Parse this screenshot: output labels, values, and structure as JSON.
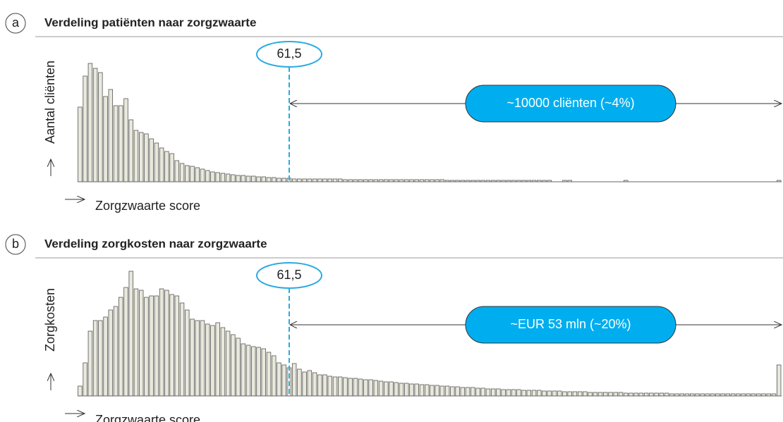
{
  "chart_data": [
    {
      "type": "bar",
      "label": "a",
      "title": "Verdeling patiënten naar zorgzwaarte",
      "y_label": "Aantal cliënten",
      "x_label": "Zorgzwaarte score",
      "marker": "61,5",
      "annotation": "~10000 cliënten (~4%)",
      "color": "#e8e8dc",
      "values": [
        106,
        150,
        168,
        161,
        155,
        121,
        131,
        108,
        108,
        118,
        88,
        73,
        70,
        68,
        61,
        55,
        48,
        43,
        40,
        30,
        26,
        23,
        22,
        20,
        18,
        16,
        14,
        13,
        12,
        11,
        10,
        9,
        9,
        8,
        8,
        7,
        7,
        6,
        6,
        5,
        5,
        5,
        4,
        4,
        4,
        4,
        4,
        4,
        4,
        4,
        4,
        4,
        3,
        3,
        3,
        3,
        3,
        3,
        3,
        3,
        3,
        3,
        3,
        3,
        3,
        3,
        3,
        3,
        3,
        3,
        3,
        3,
        2,
        2,
        2,
        2,
        2,
        2,
        2,
        2,
        2,
        2,
        2,
        2,
        2,
        2,
        2,
        2,
        2,
        2,
        2,
        2,
        2,
        0,
        0,
        2,
        2,
        0,
        0,
        0,
        0,
        0,
        0,
        0,
        0,
        0,
        0,
        2,
        0,
        0,
        0,
        0,
        0,
        0,
        0,
        0,
        0,
        0,
        0,
        0,
        0,
        0,
        0,
        0,
        0,
        0,
        0,
        0,
        0,
        0,
        0,
        0,
        0,
        0,
        0,
        0,
        0,
        2
      ]
    },
    {
      "type": "bar",
      "label": "b",
      "title": "Verdeling zorgkosten naar zorgzwaarte",
      "y_label": "Zorgkosten",
      "x_label": "Zorgzwaarte score",
      "marker": "61,5",
      "annotation": "~EUR 53 mln (~20%)",
      "color": "#e8e8dc",
      "values": [
        14,
        47,
        92,
        107,
        107,
        112,
        122,
        127,
        140,
        154,
        177,
        152,
        150,
        140,
        142,
        142,
        152,
        150,
        144,
        142,
        132,
        122,
        109,
        107,
        107,
        102,
        100,
        104,
        97,
        92,
        87,
        82,
        74,
        72,
        70,
        69,
        67,
        62,
        57,
        47,
        44,
        40,
        46,
        38,
        34,
        36,
        33,
        30,
        30,
        28,
        27,
        27,
        26,
        25,
        25,
        24,
        23,
        23,
        22,
        21,
        20,
        20,
        19,
        18,
        18,
        17,
        17,
        16,
        16,
        15,
        15,
        14,
        14,
        13,
        13,
        12,
        12,
        12,
        11,
        11,
        10,
        10,
        10,
        9,
        9,
        9,
        9,
        8,
        8,
        8,
        8,
        7,
        7,
        7,
        7,
        6,
        6,
        6,
        6,
        6,
        5,
        5,
        5,
        5,
        5,
        5,
        5,
        4,
        4,
        4,
        4,
        4,
        4,
        4,
        4,
        4,
        3,
        3,
        3,
        3,
        3,
        3,
        3,
        3,
        3,
        3,
        3,
        3,
        3,
        3,
        3,
        3,
        3,
        3,
        3,
        3,
        3,
        44
      ]
    }
  ]
}
